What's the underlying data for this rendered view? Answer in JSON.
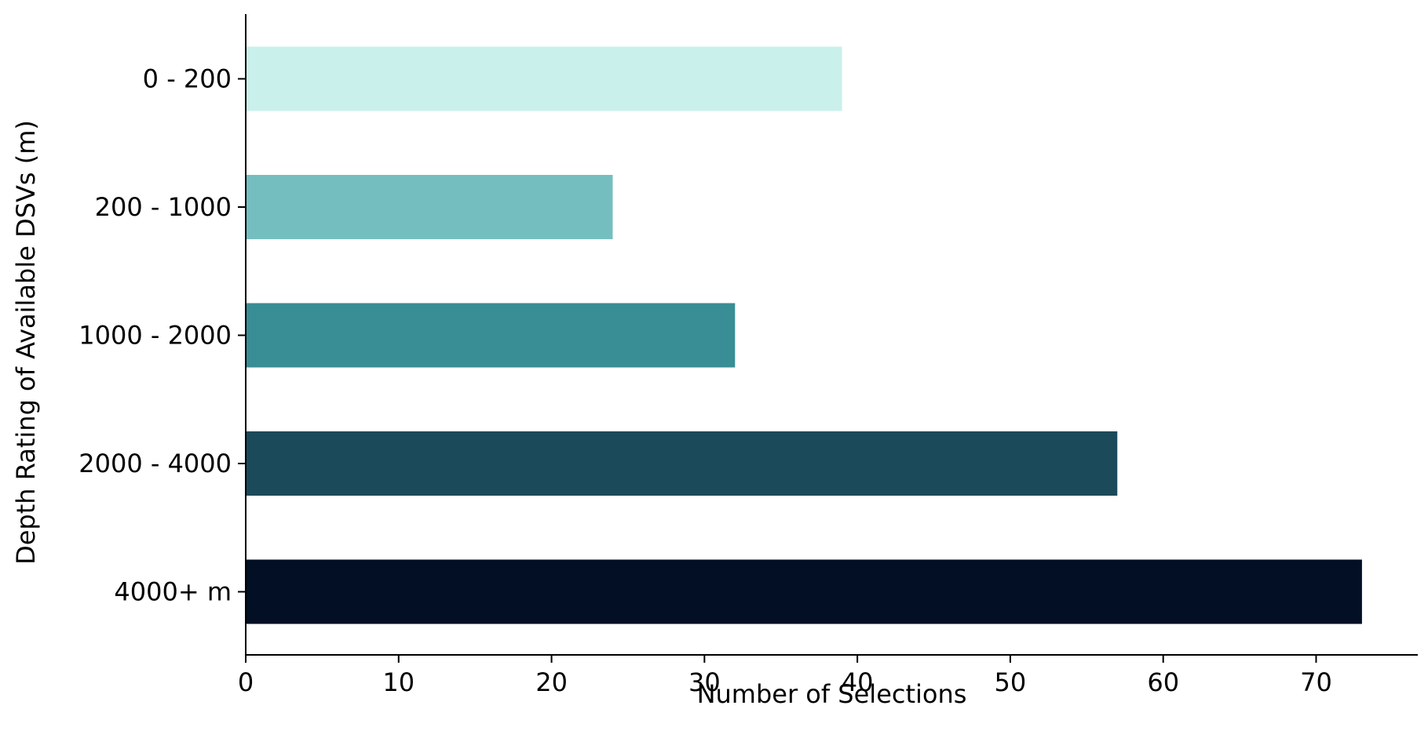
{
  "chart_data": {
    "type": "bar",
    "orientation": "horizontal",
    "categories": [
      "0 - 200",
      "200 - 1000",
      "1000 - 2000",
      "2000 - 4000",
      "4000+ m"
    ],
    "values": [
      39,
      24,
      32,
      57,
      73
    ],
    "colors": [
      "#caf0ec",
      "#75bec0",
      "#398d95",
      "#1b4a5b",
      "#030f24"
    ],
    "title": "",
    "xlabel": "Number of Selections",
    "ylabel": "Depth Rating of Available DSVs (m)",
    "xlim": [
      0,
      76.65
    ],
    "xticks": [
      0,
      10,
      20,
      30,
      40,
      50,
      60,
      70
    ],
    "grid": false,
    "legend": "none"
  }
}
